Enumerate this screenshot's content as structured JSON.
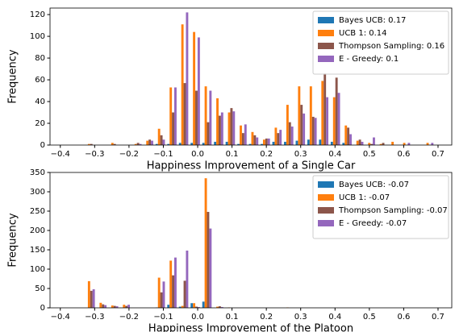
{
  "chart_data": [
    {
      "type": "histogram",
      "xlabel": "Happiness Improvement of a Single Car",
      "ylabel": "Frequency",
      "bins": [
        -0.33,
        -0.296,
        -0.262,
        -0.228,
        -0.194,
        -0.16,
        -0.126,
        -0.092,
        -0.058,
        -0.024,
        0.01,
        0.044,
        0.078,
        0.112,
        0.146,
        0.18,
        0.214,
        0.248,
        0.282,
        0.316,
        0.35,
        0.384,
        0.418,
        0.452,
        0.486,
        0.52,
        0.554,
        0.588,
        0.622,
        0.656,
        0.69
      ],
      "series": [
        {
          "name": "Bayes UCB: 0.17",
          "color": "#1f77b4",
          "values": [
            0,
            0,
            0,
            0,
            0,
            0,
            1,
            1,
            2,
            2,
            2,
            3,
            3,
            1,
            1,
            1,
            3,
            3,
            4,
            5,
            5,
            3,
            2,
            0,
            0,
            0,
            0,
            0,
            0,
            0
          ]
        },
        {
          "name": "UCB 1: 0.14",
          "color": "#ff7f0e",
          "values": [
            1,
            0,
            2,
            0,
            1,
            4,
            15,
            53,
            111,
            104,
            54,
            43,
            30,
            18,
            12,
            5,
            16,
            37,
            54,
            54,
            59,
            44,
            18,
            4,
            2,
            1,
            3,
            2,
            0,
            2
          ]
        },
        {
          "name": "Thompson Sampling: 0.16",
          "color": "#8c564b",
          "values": [
            1,
            0,
            1,
            0,
            2,
            5,
            9,
            30,
            57,
            50,
            21,
            27,
            34,
            11,
            9,
            6,
            11,
            21,
            37,
            26,
            66,
            62,
            16,
            5,
            1,
            2,
            0,
            0,
            0,
            0
          ]
        },
        {
          "name": "E - Greedy: 0.1",
          "color": "#9467bd",
          "values": [
            0,
            0,
            0,
            0,
            1,
            4,
            5,
            53,
            122,
            99,
            50,
            30,
            31,
            19,
            7,
            6,
            14,
            17,
            29,
            25,
            44,
            48,
            10,
            3,
            7,
            0,
            0,
            2,
            0,
            2
          ]
        }
      ],
      "xlim": [
        -0.43,
        0.74
      ],
      "xticks": [
        {
          "value": -0.4,
          "label": "−0.4"
        },
        {
          "value": -0.3,
          "label": "−0.3"
        },
        {
          "value": -0.2,
          "label": "−0.2"
        },
        {
          "value": -0.1,
          "label": "−0.1"
        },
        {
          "value": 0,
          "label": "0.0"
        },
        0.1,
        0.2,
        0.3,
        0.4,
        0.5,
        0.6,
        0.7
      ],
      "ylim": [
        0,
        126
      ],
      "yticks": [
        0,
        20,
        40,
        60,
        80,
        100,
        120
      ],
      "legend": "upper right"
    },
    {
      "type": "histogram",
      "xlabel": "Happiness Improvement of the Platoon",
      "ylabel": "Frequency",
      "bins": [
        -0.33,
        -0.296,
        -0.262,
        -0.228,
        -0.194,
        -0.16,
        -0.126,
        -0.092,
        -0.058,
        -0.024,
        0.01,
        0.044,
        0.078,
        0.112,
        0.146,
        0.18,
        0.214,
        0.248,
        0.282,
        0.316,
        0.35,
        0.384,
        0.418,
        0.452,
        0.486,
        0.52,
        0.554,
        0.588,
        0.622,
        0.656,
        0.69
      ],
      "series": [
        {
          "name": "Bayes UCB: -0.07",
          "color": "#1f77b4",
          "values": [
            0,
            0,
            0,
            0,
            0,
            0,
            1,
            8,
            3,
            12,
            16,
            0,
            0,
            0,
            0,
            0,
            0,
            0,
            0,
            0,
            0,
            0,
            0,
            0,
            0,
            0,
            0,
            0,
            0,
            0
          ]
        },
        {
          "name": "UCB 1: -0.07",
          "color": "#ff7f0e",
          "values": [
            69,
            13,
            6,
            8,
            0,
            0,
            78,
            122,
            5,
            12,
            335,
            3,
            1,
            0,
            0,
            0,
            0,
            1,
            0,
            0,
            0,
            0,
            0,
            0,
            0,
            0,
            0,
            0,
            0,
            0
          ]
        },
        {
          "name": "Thompson Sampling: -0.07",
          "color": "#8c564b",
          "values": [
            44,
            9,
            5,
            5,
            0,
            0,
            40,
            84,
            70,
            3,
            248,
            4,
            0,
            0,
            0,
            0,
            0,
            0,
            0,
            0,
            0,
            0,
            0,
            0,
            0,
            0,
            0,
            0,
            0,
            0
          ]
        },
        {
          "name": "E - Greedy: -0.07",
          "color": "#9467bd",
          "values": [
            48,
            7,
            4,
            8,
            0,
            0,
            68,
            130,
            148,
            2,
            205,
            2,
            0,
            0,
            0,
            0,
            0,
            0,
            0,
            0,
            0,
            0,
            0,
            0,
            0,
            0,
            0,
            0,
            0,
            0
          ]
        }
      ],
      "xlim": [
        -0.43,
        0.74
      ],
      "xticks": [
        {
          "value": -0.4,
          "label": "−0.4"
        },
        {
          "value": -0.3,
          "label": "−0.3"
        },
        {
          "value": -0.2,
          "label": "−0.2"
        },
        {
          "value": -0.1,
          "label": "−0.1"
        },
        {
          "value": 0,
          "label": "0.0"
        },
        0.1,
        0.2,
        0.3,
        0.4,
        0.5,
        0.6,
        0.7
      ],
      "ylim": [
        0,
        350
      ],
      "yticks": [
        0,
        50,
        100,
        150,
        200,
        250,
        300,
        350
      ],
      "legend": "upper right"
    }
  ]
}
